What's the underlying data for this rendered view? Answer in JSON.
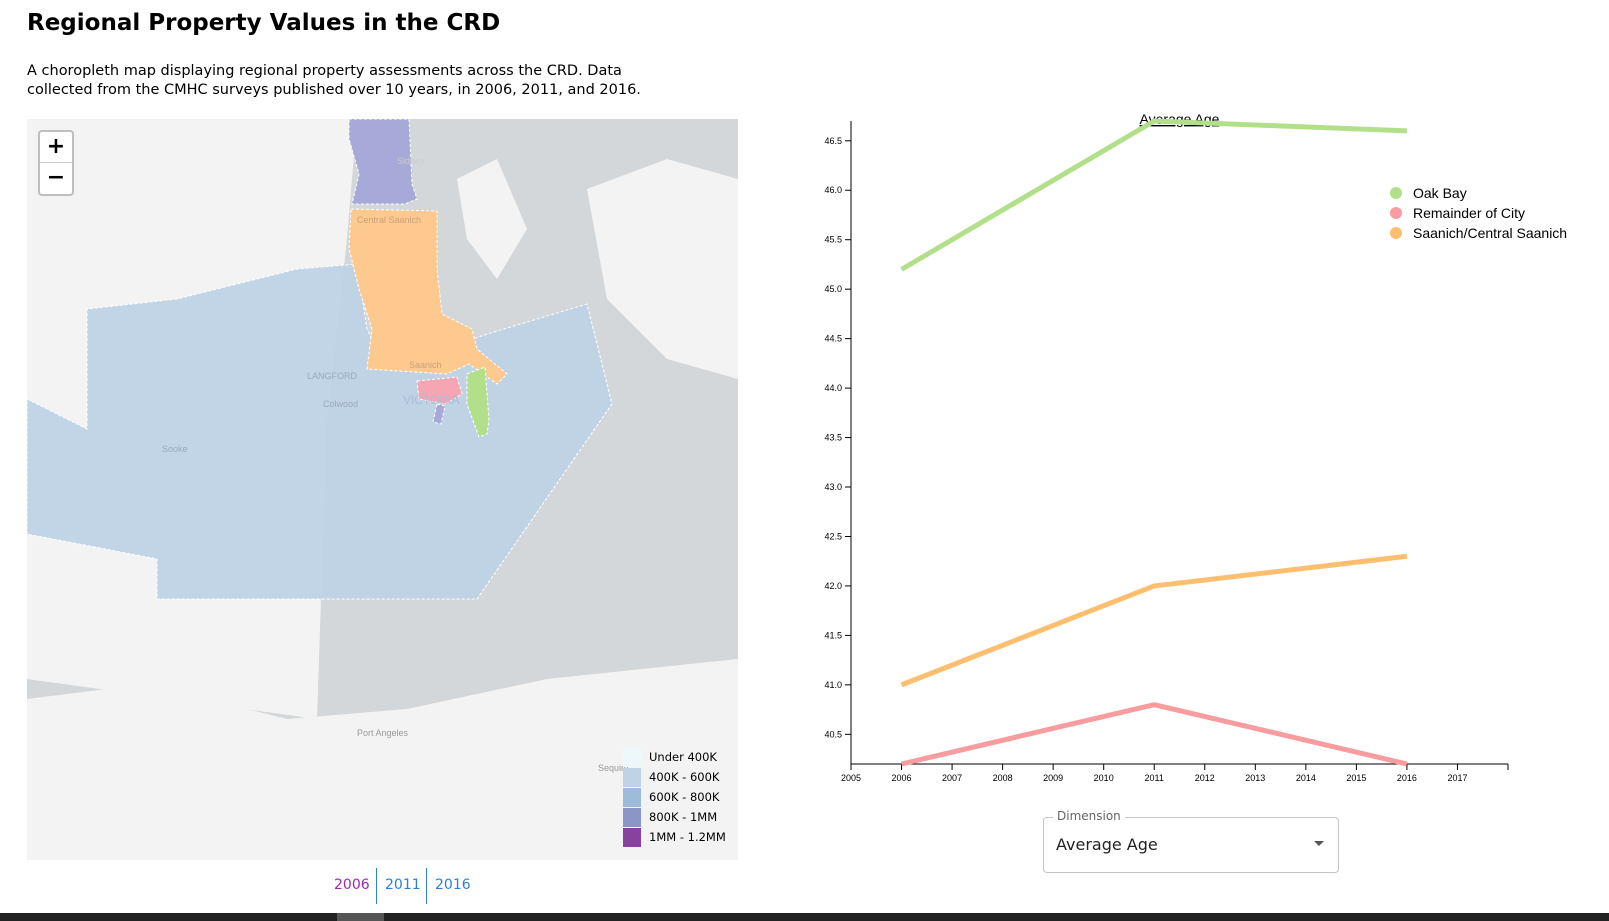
{
  "page": {
    "title": "Regional Property Values in the CRD",
    "description": "A choropleth map displaying regional property assessments across the CRD. Data collected from the CMHC surveys published over 10 years, in 2006, 2011, and 2016."
  },
  "map": {
    "zoom_in": "+",
    "zoom_out": "−",
    "places": [
      "Sidney",
      "Central Saanich",
      "Saanich",
      "LANGFORD",
      "Colwood",
      "VICTORIA",
      "Sooke",
      "Port Angeles",
      "Sequim"
    ],
    "legend": [
      {
        "label": "Under 400K",
        "color": "#edf8fb"
      },
      {
        "label": "400K - 600K",
        "color": "#bfd3e6"
      },
      {
        "label": "600K - 800K",
        "color": "#9ebcda"
      },
      {
        "label": "800K - 1MM",
        "color": "#8c96c6"
      },
      {
        "label": "1MM - 1.2MM",
        "color": "#88419d"
      }
    ],
    "region_colors": {
      "orange": "#fdc98f",
      "blue": "#bfd3e6",
      "purple": "#a7a9d8",
      "pink": "#f6a6b2",
      "green": "#b2df8a"
    }
  },
  "years": [
    "2006",
    "2011",
    "2016"
  ],
  "selected_year": "2006",
  "dimension": {
    "label": "Dimension",
    "value": "Average Age"
  },
  "chart_data": {
    "type": "line",
    "title": "Average Age",
    "xlim": [
      2005,
      2018
    ],
    "ylim": [
      40.2,
      46.7
    ],
    "x_ticks": [
      "2005",
      "2006",
      "2007",
      "2008",
      "2009",
      "2010",
      "2011",
      "2012",
      "2013",
      "2014",
      "2015",
      "2016",
      "2017"
    ],
    "y_ticks": [
      "40.5",
      "41.0",
      "41.5",
      "42.0",
      "42.5",
      "43.0",
      "43.5",
      "44.0",
      "44.5",
      "45.0",
      "45.5",
      "46.0",
      "46.5"
    ],
    "legend_position": "top-right",
    "series": [
      {
        "name": "Oak Bay",
        "color": "#b2df8a",
        "x": [
          2006,
          2011,
          2016
        ],
        "y": [
          45.2,
          46.7,
          46.6
        ]
      },
      {
        "name": "Remainder of City",
        "color": "#f89ca0",
        "x": [
          2006,
          2011,
          2016
        ],
        "y": [
          40.2,
          40.8,
          40.2
        ]
      },
      {
        "name": "Saanich/Central Saanich",
        "color": "#fdbf6f",
        "x": [
          2006,
          2011,
          2016
        ],
        "y": [
          41.0,
          42.0,
          42.3
        ]
      }
    ]
  }
}
